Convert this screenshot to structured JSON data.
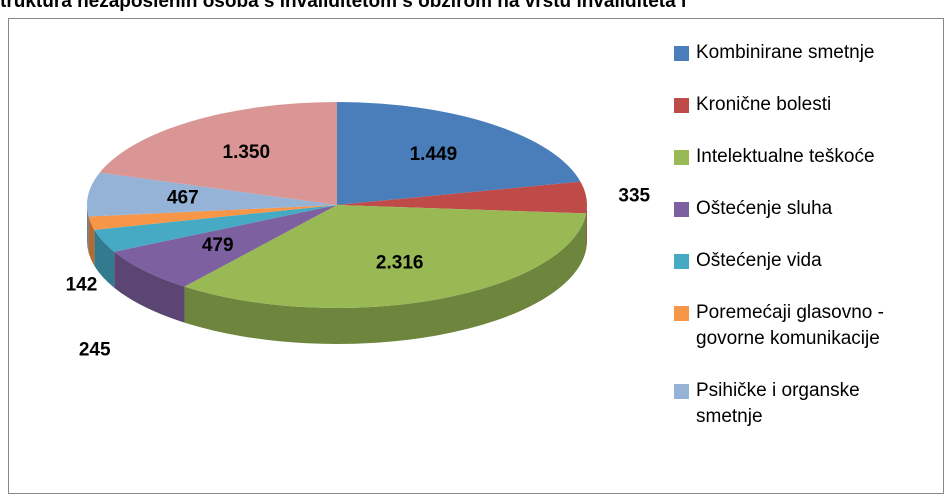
{
  "chart_data": {
    "type": "pie3d",
    "title": "truktura nezaposlenih osoba s invaliditetom s obzirom na vrstu invaliditeta i",
    "categories": [
      "Kombinirane smetnje",
      "Kronične bolesti",
      "Intelektualne teškoće",
      "Oštećenje sluha",
      "Oštećenje vida",
      "Poremećaji glasovno - govorne komunikacije",
      "Psihičke i organske smetnje",
      null
    ],
    "values": [
      1449,
      335,
      2316,
      479,
      245,
      142,
      467,
      1350
    ],
    "value_labels": [
      "1.449",
      "335",
      "2.316",
      "479",
      "245",
      "142",
      "467",
      "1.350"
    ],
    "colors": [
      "#4a7ebb",
      "#be4b48",
      "#98b954",
      "#7d60a0",
      "#46aac5",
      "#f79646",
      "#95b3d7",
      "#d99694"
    ],
    "legend": "right"
  }
}
